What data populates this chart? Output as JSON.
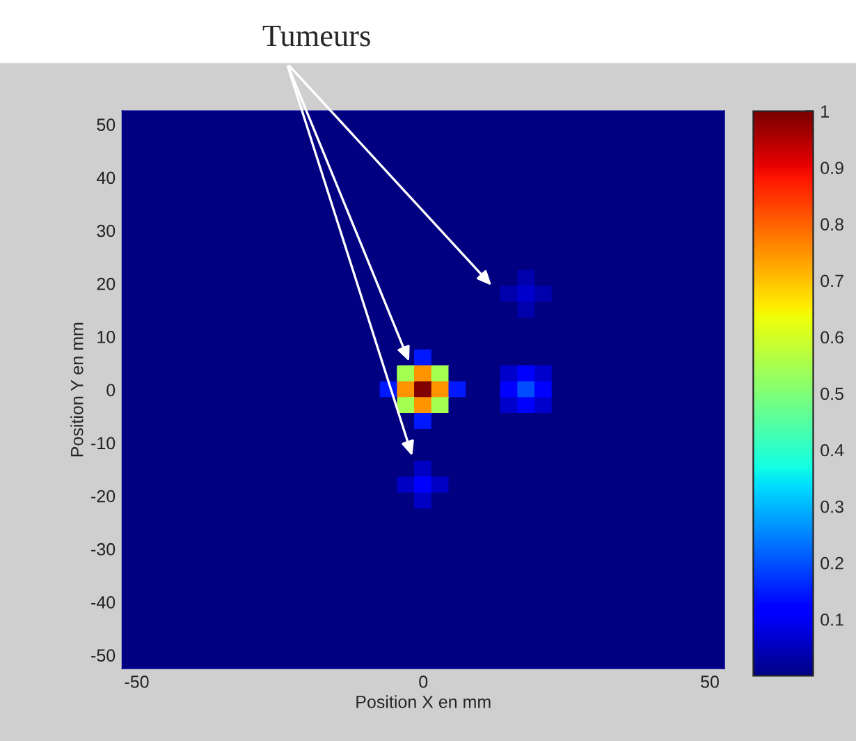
{
  "chart_data": {
    "type": "heatmap",
    "xlabel": "Position X en mm",
    "ylabel": "Position Y en mm",
    "x": [
      -51,
      -48,
      -45,
      -42,
      -39,
      -36,
      -33,
      -30,
      -27,
      -24,
      -21,
      -18,
      -15,
      -12,
      -9,
      -6,
      -3,
      0,
      3,
      6,
      9,
      12,
      15,
      18,
      21,
      24,
      27,
      30,
      33,
      36,
      39,
      42,
      45,
      48,
      51
    ],
    "y": [
      51,
      48,
      45,
      42,
      39,
      36,
      33,
      30,
      27,
      24,
      21,
      18,
      15,
      12,
      9,
      6,
      3,
      0,
      -3,
      -6,
      -9,
      -12,
      -15,
      -18,
      -21,
      -24,
      -27,
      -30,
      -33,
      -36,
      -39,
      -42,
      -45,
      -48,
      -51
    ],
    "cells": [
      [
        0,
        0,
        0,
        0,
        0,
        0,
        0,
        0,
        0,
        0,
        0,
        0,
        0,
        0,
        0,
        0,
        0,
        0,
        0,
        0,
        0,
        0,
        0,
        0,
        0,
        0,
        0,
        0,
        0,
        0,
        0,
        0,
        0,
        0,
        0
      ],
      [
        0,
        0,
        0,
        0,
        0,
        0,
        0,
        0,
        0,
        0,
        0,
        0,
        0,
        0,
        0,
        0,
        0,
        0,
        0,
        0,
        0,
        0,
        0,
        0,
        0,
        0,
        0,
        0,
        0,
        0,
        0,
        0,
        0,
        0,
        0
      ],
      [
        0,
        0,
        0,
        0,
        0,
        0,
        0,
        0,
        0,
        0,
        0,
        0,
        0,
        0,
        0,
        0,
        0,
        0,
        0,
        0,
        0,
        0,
        0,
        0,
        0,
        0,
        0,
        0,
        0,
        0,
        0,
        0,
        0,
        0,
        0
      ],
      [
        0,
        0,
        0,
        0,
        0,
        0,
        0,
        0,
        0,
        0,
        0,
        0,
        0,
        0,
        0,
        0,
        0,
        0,
        0,
        0,
        0,
        0,
        0,
        0,
        0,
        0,
        0,
        0,
        0,
        0,
        0,
        0,
        0,
        0,
        0
      ],
      [
        0,
        0,
        0,
        0,
        0,
        0,
        0,
        0,
        0,
        0,
        0,
        0,
        0,
        0,
        0,
        0,
        0,
        0,
        0,
        0,
        0,
        0,
        0,
        0,
        0,
        0,
        0,
        0,
        0,
        0,
        0,
        0,
        0,
        0,
        0
      ],
      [
        0,
        0,
        0,
        0,
        0,
        0,
        0,
        0,
        0,
        0,
        0,
        0,
        0,
        0,
        0,
        0,
        0,
        0,
        0,
        0,
        0,
        0,
        0,
        0,
        0,
        0,
        0,
        0,
        0,
        0,
        0,
        0,
        0,
        0,
        0
      ],
      [
        0,
        0,
        0,
        0,
        0,
        0,
        0,
        0,
        0,
        0,
        0,
        0,
        0,
        0,
        0,
        0,
        0,
        0,
        0,
        0,
        0,
        0,
        0,
        0,
        0,
        0,
        0,
        0,
        0,
        0,
        0,
        0,
        0,
        0,
        0
      ],
      [
        0,
        0,
        0,
        0,
        0,
        0,
        0,
        0,
        0,
        0,
        0,
        0,
        0,
        0,
        0,
        0,
        0,
        0,
        0,
        0,
        0,
        0,
        0,
        0,
        0,
        0,
        0,
        0,
        0,
        0,
        0,
        0,
        0,
        0,
        0
      ],
      [
        0,
        0,
        0,
        0,
        0,
        0,
        0,
        0,
        0,
        0,
        0,
        0,
        0,
        0,
        0,
        0,
        0,
        0,
        0,
        0,
        0,
        0,
        0,
        0,
        0,
        0,
        0,
        0,
        0,
        0,
        0,
        0,
        0,
        0,
        0
      ],
      [
        0,
        0,
        0,
        0,
        0,
        0,
        0,
        0,
        0,
        0,
        0,
        0,
        0,
        0,
        0,
        0,
        0,
        0,
        0,
        0,
        0,
        0,
        0,
        0,
        0,
        0,
        0,
        0,
        0,
        0,
        0,
        0,
        0,
        0,
        0
      ],
      [
        0,
        0,
        0,
        0,
        0,
        0,
        0,
        0,
        0,
        0,
        0,
        0,
        0,
        0,
        0,
        0,
        0,
        0,
        0,
        0,
        0,
        0,
        0,
        0.04,
        0,
        0,
        0,
        0,
        0,
        0,
        0,
        0,
        0,
        0,
        0
      ],
      [
        0,
        0,
        0,
        0,
        0,
        0,
        0,
        0,
        0,
        0,
        0,
        0,
        0,
        0,
        0,
        0,
        0,
        0,
        0,
        0,
        0,
        0,
        0.04,
        0.07,
        0.04,
        0,
        0,
        0,
        0,
        0,
        0,
        0,
        0,
        0,
        0
      ],
      [
        0,
        0,
        0,
        0,
        0,
        0,
        0,
        0,
        0,
        0,
        0,
        0,
        0,
        0,
        0,
        0,
        0,
        0,
        0,
        0,
        0,
        0,
        0,
        0.04,
        0,
        0,
        0,
        0,
        0,
        0,
        0,
        0,
        0,
        0,
        0
      ],
      [
        0,
        0,
        0,
        0,
        0,
        0,
        0,
        0,
        0,
        0,
        0,
        0,
        0,
        0,
        0,
        0,
        0,
        0,
        0,
        0,
        0,
        0,
        0,
        0,
        0,
        0,
        0,
        0,
        0,
        0,
        0,
        0,
        0,
        0,
        0
      ],
      [
        0,
        0,
        0,
        0,
        0,
        0,
        0,
        0,
        0,
        0,
        0,
        0,
        0,
        0,
        0,
        0,
        0,
        0,
        0,
        0,
        0,
        0,
        0,
        0,
        0,
        0,
        0,
        0,
        0,
        0,
        0,
        0,
        0,
        0,
        0
      ],
      [
        0,
        0,
        0,
        0,
        0,
        0,
        0,
        0,
        0,
        0,
        0,
        0,
        0,
        0,
        0,
        0,
        0,
        0.15,
        0,
        0,
        0,
        0,
        0,
        0,
        0,
        0,
        0,
        0,
        0,
        0,
        0,
        0,
        0,
        0,
        0
      ],
      [
        0,
        0,
        0,
        0,
        0,
        0,
        0,
        0,
        0,
        0,
        0,
        0,
        0,
        0,
        0,
        0,
        0.55,
        0.75,
        0.55,
        0,
        0,
        0,
        0.07,
        0.12,
        0.07,
        0,
        0,
        0,
        0,
        0,
        0,
        0,
        0,
        0,
        0
      ],
      [
        0,
        0,
        0,
        0,
        0,
        0,
        0,
        0,
        0,
        0,
        0,
        0,
        0,
        0,
        0,
        0.15,
        0.75,
        1,
        0.75,
        0.15,
        0,
        0,
        0.12,
        0.2,
        0.12,
        0,
        0,
        0,
        0,
        0,
        0,
        0,
        0,
        0,
        0
      ],
      [
        0,
        0,
        0,
        0,
        0,
        0,
        0,
        0,
        0,
        0,
        0,
        0,
        0,
        0,
        0,
        0,
        0.55,
        0.75,
        0.55,
        0,
        0,
        0,
        0.07,
        0.12,
        0.07,
        0,
        0,
        0,
        0,
        0,
        0,
        0,
        0,
        0,
        0
      ],
      [
        0,
        0,
        0,
        0,
        0,
        0,
        0,
        0,
        0,
        0,
        0,
        0,
        0,
        0,
        0,
        0,
        0,
        0.15,
        0,
        0,
        0,
        0,
        0,
        0,
        0,
        0,
        0,
        0,
        0,
        0,
        0,
        0,
        0,
        0,
        0
      ],
      [
        0,
        0,
        0,
        0,
        0,
        0,
        0,
        0,
        0,
        0,
        0,
        0,
        0,
        0,
        0,
        0,
        0,
        0,
        0,
        0,
        0,
        0,
        0,
        0,
        0,
        0,
        0,
        0,
        0,
        0,
        0,
        0,
        0,
        0,
        0
      ],
      [
        0,
        0,
        0,
        0,
        0,
        0,
        0,
        0,
        0,
        0,
        0,
        0,
        0,
        0,
        0,
        0,
        0,
        0,
        0,
        0,
        0,
        0,
        0,
        0,
        0,
        0,
        0,
        0,
        0,
        0,
        0,
        0,
        0,
        0,
        0
      ],
      [
        0,
        0,
        0,
        0,
        0,
        0,
        0,
        0,
        0,
        0,
        0,
        0,
        0,
        0,
        0,
        0,
        0,
        0.06,
        0,
        0,
        0,
        0,
        0,
        0,
        0,
        0,
        0,
        0,
        0,
        0,
        0,
        0,
        0,
        0,
        0
      ],
      [
        0,
        0,
        0,
        0,
        0,
        0,
        0,
        0,
        0,
        0,
        0,
        0,
        0,
        0,
        0,
        0,
        0.06,
        0.12,
        0.06,
        0,
        0,
        0,
        0,
        0,
        0,
        0,
        0,
        0,
        0,
        0,
        0,
        0,
        0,
        0,
        0
      ],
      [
        0,
        0,
        0,
        0,
        0,
        0,
        0,
        0,
        0,
        0,
        0,
        0,
        0,
        0,
        0,
        0,
        0,
        0.06,
        0,
        0,
        0,
        0,
        0,
        0,
        0,
        0,
        0,
        0,
        0,
        0,
        0,
        0,
        0,
        0,
        0
      ],
      [
        0,
        0,
        0,
        0,
        0,
        0,
        0,
        0,
        0,
        0,
        0,
        0,
        0,
        0,
        0,
        0,
        0,
        0,
        0,
        0,
        0,
        0,
        0,
        0,
        0,
        0,
        0,
        0,
        0,
        0,
        0,
        0,
        0,
        0,
        0
      ],
      [
        0,
        0,
        0,
        0,
        0,
        0,
        0,
        0,
        0,
        0,
        0,
        0,
        0,
        0,
        0,
        0,
        0,
        0,
        0,
        0,
        0,
        0,
        0,
        0,
        0,
        0,
        0,
        0,
        0,
        0,
        0,
        0,
        0,
        0,
        0
      ],
      [
        0,
        0,
        0,
        0,
        0,
        0,
        0,
        0,
        0,
        0,
        0,
        0,
        0,
        0,
        0,
        0,
        0,
        0,
        0,
        0,
        0,
        0,
        0,
        0,
        0,
        0,
        0,
        0,
        0,
        0,
        0,
        0,
        0,
        0,
        0
      ],
      [
        0,
        0,
        0,
        0,
        0,
        0,
        0,
        0,
        0,
        0,
        0,
        0,
        0,
        0,
        0,
        0,
        0,
        0,
        0,
        0,
        0,
        0,
        0,
        0,
        0,
        0,
        0,
        0,
        0,
        0,
        0,
        0,
        0,
        0,
        0
      ],
      [
        0,
        0,
        0,
        0,
        0,
        0,
        0,
        0,
        0,
        0,
        0,
        0,
        0,
        0,
        0,
        0,
        0,
        0,
        0,
        0,
        0,
        0,
        0,
        0,
        0,
        0,
        0,
        0,
        0,
        0,
        0,
        0,
        0,
        0,
        0
      ],
      [
        0,
        0,
        0,
        0,
        0,
        0,
        0,
        0,
        0,
        0,
        0,
        0,
        0,
        0,
        0,
        0,
        0,
        0,
        0,
        0,
        0,
        0,
        0,
        0,
        0,
        0,
        0,
        0,
        0,
        0,
        0,
        0,
        0,
        0,
        0
      ],
      [
        0,
        0,
        0,
        0,
        0,
        0,
        0,
        0,
        0,
        0,
        0,
        0,
        0,
        0,
        0,
        0,
        0,
        0,
        0,
        0,
        0,
        0,
        0,
        0,
        0,
        0,
        0,
        0,
        0,
        0,
        0,
        0,
        0,
        0,
        0
      ],
      [
        0,
        0,
        0,
        0,
        0,
        0,
        0,
        0,
        0,
        0,
        0,
        0,
        0,
        0,
        0,
        0,
        0,
        0,
        0,
        0,
        0,
        0,
        0,
        0,
        0,
        0,
        0,
        0,
        0,
        0,
        0,
        0,
        0,
        0,
        0
      ],
      [
        0,
        0,
        0,
        0,
        0,
        0,
        0,
        0,
        0,
        0,
        0,
        0,
        0,
        0,
        0,
        0,
        0,
        0,
        0,
        0,
        0,
        0,
        0,
        0,
        0,
        0,
        0,
        0,
        0,
        0,
        0,
        0,
        0,
        0,
        0
      ],
      [
        0,
        0,
        0,
        0,
        0,
        0,
        0,
        0,
        0,
        0,
        0,
        0,
        0,
        0,
        0,
        0,
        0,
        0,
        0,
        0,
        0,
        0,
        0,
        0,
        0,
        0,
        0,
        0,
        0,
        0,
        0,
        0,
        0,
        0,
        0
      ]
    ],
    "xlim": [
      -52.5,
      52.5
    ],
    "ylim": [
      -52.5,
      52.5
    ],
    "xticks": [
      -50,
      0,
      50
    ],
    "yticks": [
      -50,
      -40,
      -30,
      -20,
      -10,
      0,
      10,
      20,
      30,
      40,
      50
    ],
    "clim": [
      0,
      1
    ],
    "cticks": [
      0.1,
      0.2,
      0.3,
      0.4,
      0.5,
      0.6,
      0.7,
      0.8,
      0.9,
      1
    ],
    "annotations": [
      "Tumeurs"
    ]
  }
}
